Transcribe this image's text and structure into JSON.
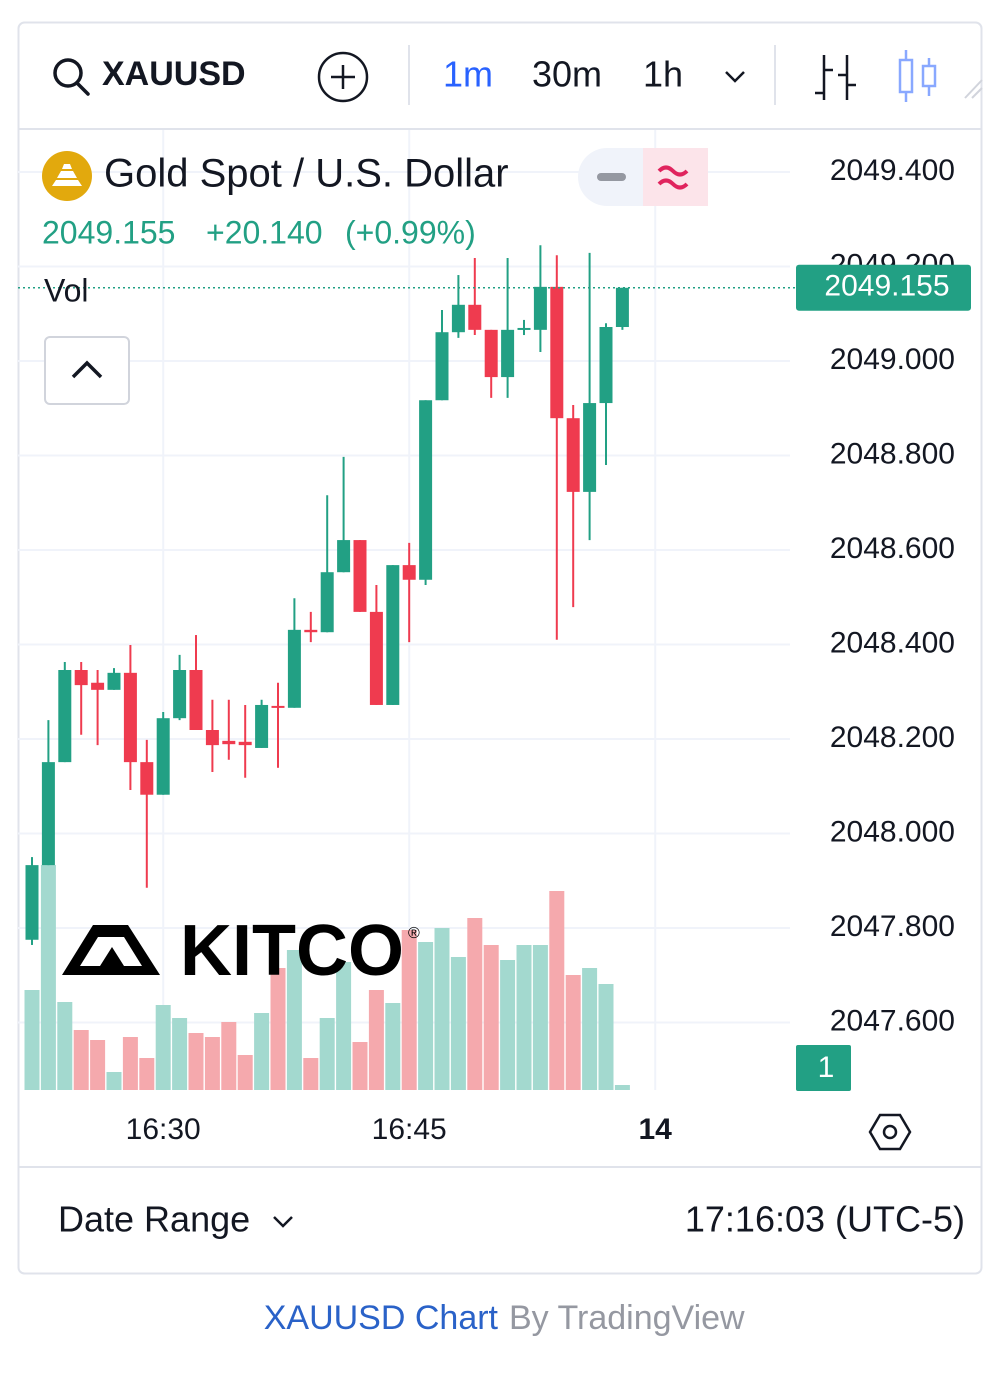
{
  "toolbar": {
    "symbol": "XAUUSD",
    "intervals": [
      "1m",
      "30m",
      "1h"
    ]
  },
  "chart_data": {
    "type": "candlestick",
    "title": "Gold Spot / U.S. Dollar",
    "change": "+20.140",
    "change_percent": "(+0.99%)",
    "volume_label": "Vol",
    "watermark": "KITCO",
    "trademark": "®",
    "badge": "1",
    "categories": [
      null,
      null,
      null,
      null,
      null,
      null,
      null,
      null,
      "16:30",
      null,
      null,
      null,
      null,
      null,
      null,
      null,
      null,
      null,
      null,
      null,
      null,
      null,
      null,
      "16:45",
      null,
      null,
      null,
      null,
      null,
      null,
      null,
      null,
      null,
      null,
      null,
      null,
      null,
      null,
      "14"
    ],
    "open": [
      2047.775,
      2047.933,
      2048.151,
      2048.346,
      2048.319,
      2048.304,
      2048.34,
      2048.151,
      2048.082,
      2048.244,
      2048.346,
      2048.219,
      2048.196,
      2048.194,
      2048.181,
      2048.27,
      2048.266,
      2048.431,
      2048.426,
      2048.553,
      2048.621,
      2048.469,
      2048.272,
      2048.568,
      2048.537,
      2048.917,
      2049.061,
      2049.119,
      2049.066,
      2048.966,
      2049.066,
      2049.066,
      2049.157,
      2048.879,
      2048.723,
      2048.911,
      2049.072,
      null,
      null
    ],
    "high": [
      2047.95,
      2048.24,
      2048.363,
      2048.363,
      2048.346,
      2048.35,
      2048.399,
      2048.198,
      2048.257,
      2048.378,
      2048.42,
      2048.283,
      2048.283,
      2048.272,
      2048.283,
      2048.319,
      2048.498,
      2048.469,
      2048.716,
      2048.797,
      2048.621,
      2048.526,
      2048.568,
      2048.615,
      2048.917,
      2049.108,
      2049.182,
      2049.218,
      2049.066,
      2049.218,
      2049.087,
      2049.245,
      2049.224,
      2048.907,
      2049.229,
      2049.08,
      2049.155,
      null,
      null
    ],
    "low": [
      2047.764,
      2047.933,
      2048.151,
      2048.209,
      2048.187,
      2048.304,
      2048.092,
      2047.885,
      2048.082,
      2048.24,
      2048.219,
      2048.13,
      2048.156,
      2048.118,
      2048.181,
      2048.139,
      2048.266,
      2048.405,
      2048.426,
      2048.553,
      2048.469,
      2048.272,
      2048.272,
      2048.405,
      2048.526,
      2048.917,
      2049.049,
      2049.055,
      2048.922,
      2048.922,
      2049.055,
      2049.019,
      2048.41,
      2048.479,
      2048.621,
      2048.78,
      2049.066,
      null,
      null
    ],
    "close": [
      2047.933,
      2048.151,
      2048.346,
      2048.314,
      2048.304,
      2048.34,
      2048.151,
      2048.082,
      2048.244,
      2048.346,
      2048.219,
      2048.187,
      2048.189,
      2048.187,
      2048.272,
      2048.266,
      2048.431,
      2048.426,
      2048.553,
      2048.621,
      2048.469,
      2048.272,
      2048.568,
      2048.537,
      2048.917,
      2049.061,
      2049.119,
      2049.066,
      2048.966,
      2049.066,
      2049.07,
      2049.157,
      2048.879,
      2048.723,
      2048.911,
      2049.072,
      2049.155,
      null,
      null
    ],
    "volume": [
      100,
      225,
      88,
      60,
      50,
      18,
      53,
      32,
      85,
      72,
      57,
      53,
      68,
      35,
      77,
      122,
      140,
      32,
      72,
      128,
      48,
      100,
      87,
      160,
      148,
      162,
      133,
      172,
      145,
      130,
      145,
      145,
      199,
      115,
      122,
      106,
      5,
      null,
      null
    ],
    "up_color": "#22a084",
    "down_color": "#ef3b4f",
    "volume_up_color": "#a3d9cf",
    "volume_down_color": "#f5a9ad",
    "ylim": [
      2047.457,
      2049.489
    ],
    "yticks": [
      {
        "value": 2047.6,
        "label": "2047.600"
      },
      {
        "value": 2047.8,
        "label": "2047.800"
      },
      {
        "value": 2048.0,
        "label": "2048.000"
      },
      {
        "value": 2048.2,
        "label": "2048.200"
      },
      {
        "value": 2048.4,
        "label": "2048.400"
      },
      {
        "value": 2048.6,
        "label": "2048.600"
      },
      {
        "value": 2048.8,
        "label": "2048.800"
      },
      {
        "value": 2049.0,
        "label": "2049.000"
      },
      {
        "value": 2049.2,
        "label": "2049.200"
      },
      {
        "value": 2049.4,
        "label": "2049.400"
      }
    ],
    "volume_lim": [
      0,
      240
    ],
    "grid": true
  },
  "footer": {
    "date_range": "Date Range",
    "time": "17:16:03 (UTC-5)"
  },
  "credit": {
    "link": "XAUUSD Chart",
    "by": "By TradingView"
  }
}
